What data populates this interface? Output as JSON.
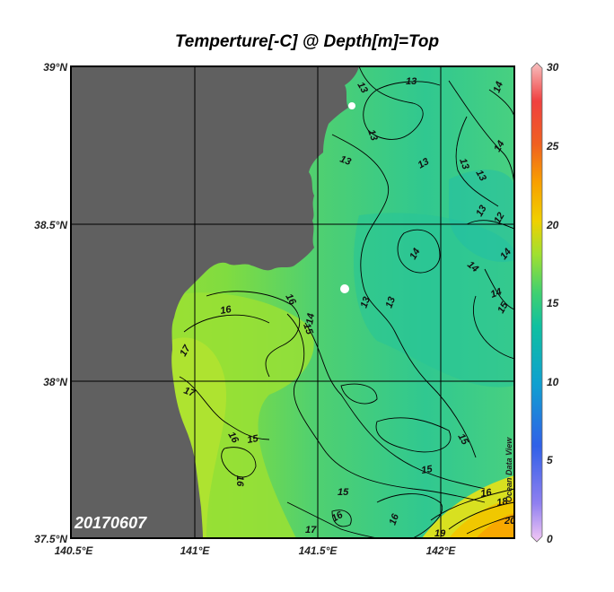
{
  "title": "Temperture[-C] @ Depth[m]=Top",
  "date_stamp": "20170607",
  "watermark": "Ocean Data View",
  "axes": {
    "lat_labels": [
      "39°N",
      "38.5°N",
      "38°N",
      "37.5°N"
    ],
    "lon_labels": [
      "140.5°E",
      "141°E",
      "141.5°E",
      "142°E"
    ]
  },
  "colorbar": {
    "labels": [
      "30",
      "25",
      "20",
      "15",
      "10",
      "5",
      "0"
    ],
    "min": 0,
    "max": 30
  },
  "contour_labels": [
    "13",
    "13",
    "13",
    "13",
    "13",
    "13",
    "13",
    "13",
    "13",
    "13",
    "14",
    "14",
    "14",
    "14",
    "14",
    "14",
    "14",
    "15",
    "15",
    "15",
    "15",
    "15",
    "15",
    "16",
    "16",
    "16",
    "16",
    "16",
    "16",
    "16",
    "17",
    "17",
    "18",
    "19",
    "20",
    "12",
    "17"
  ],
  "colors": {
    "land": "#606060",
    "frame": "#000000",
    "grid": "#000000",
    "contour": "#000000"
  }
}
